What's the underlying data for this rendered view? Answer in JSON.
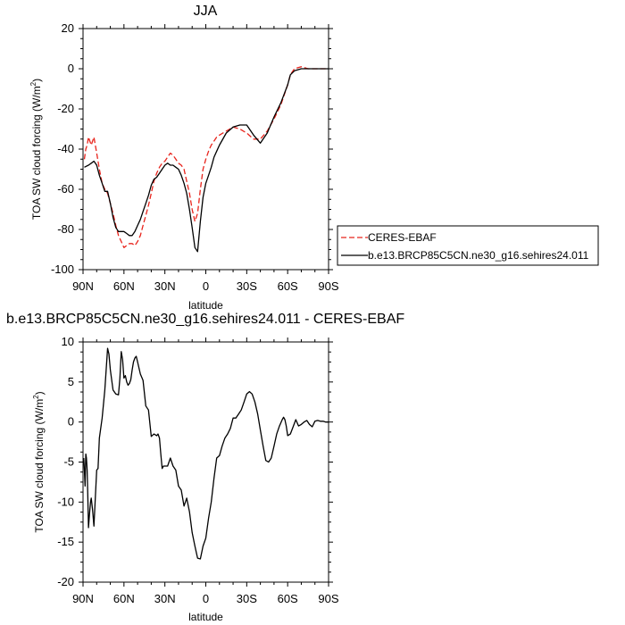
{
  "chart_data": [
    {
      "type": "line",
      "title": "JJA",
      "xlabel": "latitude",
      "ylabel": "TOA SW cloud forcing (W/m",
      "ylabel_sup": "2",
      "ylabel_end": ")",
      "xlim": [
        90,
        -90
      ],
      "ylim": [
        -100,
        20
      ],
      "x_ticks": [
        90,
        60,
        30,
        0,
        -30,
        -60,
        -90
      ],
      "x_tick_labels": [
        "90N",
        "60N",
        "30N",
        "0",
        "30S",
        "60S",
        "90S"
      ],
      "y_ticks": [
        -100,
        -80,
        -60,
        -40,
        -20,
        0,
        20
      ],
      "y_tick_labels": [
        "-100",
        "-80",
        "-60",
        "-40",
        "-20",
        "0",
        "20"
      ],
      "legend": {
        "placement": "right",
        "entries": [
          "CERES-EBAF",
          "b.e13.BRCP85C5CN.ne30_g16.sehires24.011"
        ]
      },
      "series": [
        {
          "name": "CERES-EBAF",
          "color": "#e8241c",
          "dash": "dashed",
          "x": [
            89,
            88,
            87,
            86,
            85,
            84,
            82,
            80,
            78,
            76,
            74,
            72,
            70,
            68,
            66,
            64,
            62,
            60,
            58,
            56,
            54,
            52,
            50,
            48,
            46,
            44,
            42,
            40,
            38,
            36,
            34,
            32,
            30,
            28,
            26,
            24,
            22,
            20,
            18,
            16,
            14,
            12,
            10,
            8,
            6,
            4,
            2,
            0,
            -2,
            -4,
            -6,
            -8,
            -10,
            -15,
            -20,
            -25,
            -30,
            -35,
            -40,
            -45,
            -50,
            -55,
            -60,
            -62,
            -65,
            -70,
            -75,
            -80,
            -85,
            -90
          ],
          "y": [
            -45,
            -40,
            -38,
            -34,
            -36,
            -38,
            -34,
            -42,
            -50,
            -57,
            -60,
            -62,
            -67,
            -72,
            -78,
            -83,
            -86,
            -89,
            -88,
            -87,
            -87,
            -88,
            -86,
            -83,
            -78,
            -73,
            -68,
            -62,
            -56,
            -52,
            -49,
            -47,
            -46,
            -44,
            -42,
            -43,
            -45,
            -47,
            -48,
            -50,
            -56,
            -62,
            -70,
            -76,
            -72,
            -60,
            -50,
            -45,
            -41,
            -38,
            -36,
            -34,
            -33,
            -31,
            -29,
            -30,
            -32,
            -35,
            -35,
            -31,
            -25,
            -18,
            -8,
            -3,
            0,
            1,
            0,
            0,
            0,
            0
          ]
        },
        {
          "name": "b.e13.BRCP85C5CN.ne30_g16.sehires24.011",
          "color": "#000000",
          "dash": "solid",
          "x": [
            89,
            86,
            84,
            82,
            80,
            78,
            76,
            74,
            72,
            70,
            68,
            66,
            64,
            62,
            60,
            58,
            56,
            54,
            52,
            50,
            48,
            46,
            44,
            42,
            40,
            38,
            36,
            34,
            32,
            30,
            28,
            26,
            24,
            22,
            20,
            18,
            16,
            14,
            12,
            10,
            8,
            6,
            4,
            2,
            0,
            -2,
            -4,
            -6,
            -8,
            -10,
            -15,
            -20,
            -25,
            -30,
            -35,
            -40,
            -45,
            -50,
            -55,
            -60,
            -62,
            -65,
            -70,
            -75,
            -80,
            -85,
            -90
          ],
          "y": [
            -49,
            -48,
            -47,
            -46,
            -48,
            -53,
            -57,
            -61,
            -61,
            -67,
            -74,
            -79,
            -81,
            -81,
            -81,
            -82,
            -83,
            -83,
            -81,
            -78,
            -75,
            -71,
            -67,
            -63,
            -58,
            -55,
            -54,
            -52,
            -50,
            -48,
            -47,
            -48,
            -48,
            -49,
            -50,
            -53,
            -57,
            -62,
            -70,
            -79,
            -89,
            -91,
            -76,
            -64,
            -57,
            -53,
            -49,
            -44,
            -41,
            -38,
            -32,
            -29,
            -28,
            -28,
            -33,
            -37,
            -32,
            -24,
            -17,
            -8,
            -3,
            -1,
            0,
            0,
            0,
            0,
            0
          ]
        }
      ]
    },
    {
      "type": "line",
      "title": "b.e13.BRCP85C5CN.ne30_g16.sehires24.011 - CERES-EBAF",
      "xlabel": "latitude",
      "ylabel": "TOA SW cloud forcing (W/m",
      "ylabel_sup": "2",
      "ylabel_end": ")",
      "xlim": [
        90,
        -90
      ],
      "ylim": [
        -20,
        10
      ],
      "x_ticks": [
        90,
        60,
        30,
        0,
        -30,
        -60,
        -90
      ],
      "x_tick_labels": [
        "90N",
        "60N",
        "30N",
        "0",
        "30S",
        "60S",
        "90S"
      ],
      "y_ticks": [
        -20,
        -15,
        -10,
        -5,
        0,
        5,
        10
      ],
      "y_tick_labels": [
        "-20",
        "-15",
        "-10",
        "-5",
        "0",
        "5",
        "10"
      ],
      "series": [
        {
          "color": "#000000",
          "dash": "solid",
          "x": [
            89.5,
            89,
            88.5,
            88,
            87.5,
            87,
            86.5,
            86,
            85.5,
            85,
            84.5,
            84,
            83,
            82,
            80,
            79,
            78,
            76,
            74,
            72,
            71,
            70,
            68,
            66,
            64,
            63,
            62,
            61,
            60,
            59,
            58,
            57,
            56,
            55,
            54,
            53,
            52,
            51,
            50,
            48,
            46,
            44,
            42,
            40,
            38,
            36,
            35,
            34,
            33,
            32,
            31,
            30,
            28,
            26,
            24,
            22,
            20,
            18,
            16,
            14,
            12,
            10,
            8,
            6,
            4,
            2,
            0,
            -2,
            -4,
            -6,
            -8,
            -10,
            -12,
            -14,
            -16,
            -18,
            -20,
            -22,
            -24,
            -26,
            -28,
            -30,
            -32,
            -34,
            -36,
            -38,
            -40,
            -42,
            -44,
            -46,
            -48,
            -50,
            -52,
            -54,
            -56,
            -57,
            -58,
            -59,
            -60,
            -62,
            -64,
            -66,
            -68,
            -70,
            -72,
            -74,
            -76,
            -78,
            -80,
            -82,
            -84,
            -86,
            -88,
            -90
          ],
          "y": [
            -4.5,
            -6,
            -8,
            -4,
            -4.5,
            -6,
            -9,
            -13.2,
            -12,
            -11,
            -10,
            -9.5,
            -11,
            -13,
            -6,
            -5.8,
            -2,
            0.5,
            4,
            9.2,
            8.5,
            6.5,
            4,
            3.5,
            3.4,
            5.5,
            8.8,
            7.8,
            5.5,
            5.8,
            5,
            4.6,
            4.8,
            5.3,
            6.5,
            7.5,
            8,
            8.2,
            7.5,
            6,
            5.2,
            2,
            1.5,
            -1.8,
            -1.5,
            -1.7,
            -1.5,
            -2,
            -4,
            -5.8,
            -5.5,
            -5.5,
            -5.5,
            -4.5,
            -5.5,
            -6,
            -8,
            -8.5,
            -10.5,
            -9.5,
            -11.2,
            -13.8,
            -15.5,
            -17,
            -17.1,
            -15.5,
            -14.5,
            -12,
            -10,
            -7,
            -4.5,
            -4.2,
            -3,
            -2,
            -1.5,
            -0.8,
            0.5,
            0.5,
            1,
            1.5,
            2.5,
            3.5,
            3.8,
            3.5,
            2.5,
            1,
            -1,
            -3,
            -4.8,
            -5,
            -4.5,
            -3,
            -1.5,
            -0.5,
            0.3,
            0.6,
            0.3,
            -0.5,
            -1.7,
            -1.5,
            -0.6,
            0.3,
            -0.5,
            -0.3,
            0,
            0.2,
            -0.3,
            -0.6,
            0.1,
            0.2,
            0.1,
            0.1,
            0,
            0
          ]
        }
      ]
    }
  ]
}
